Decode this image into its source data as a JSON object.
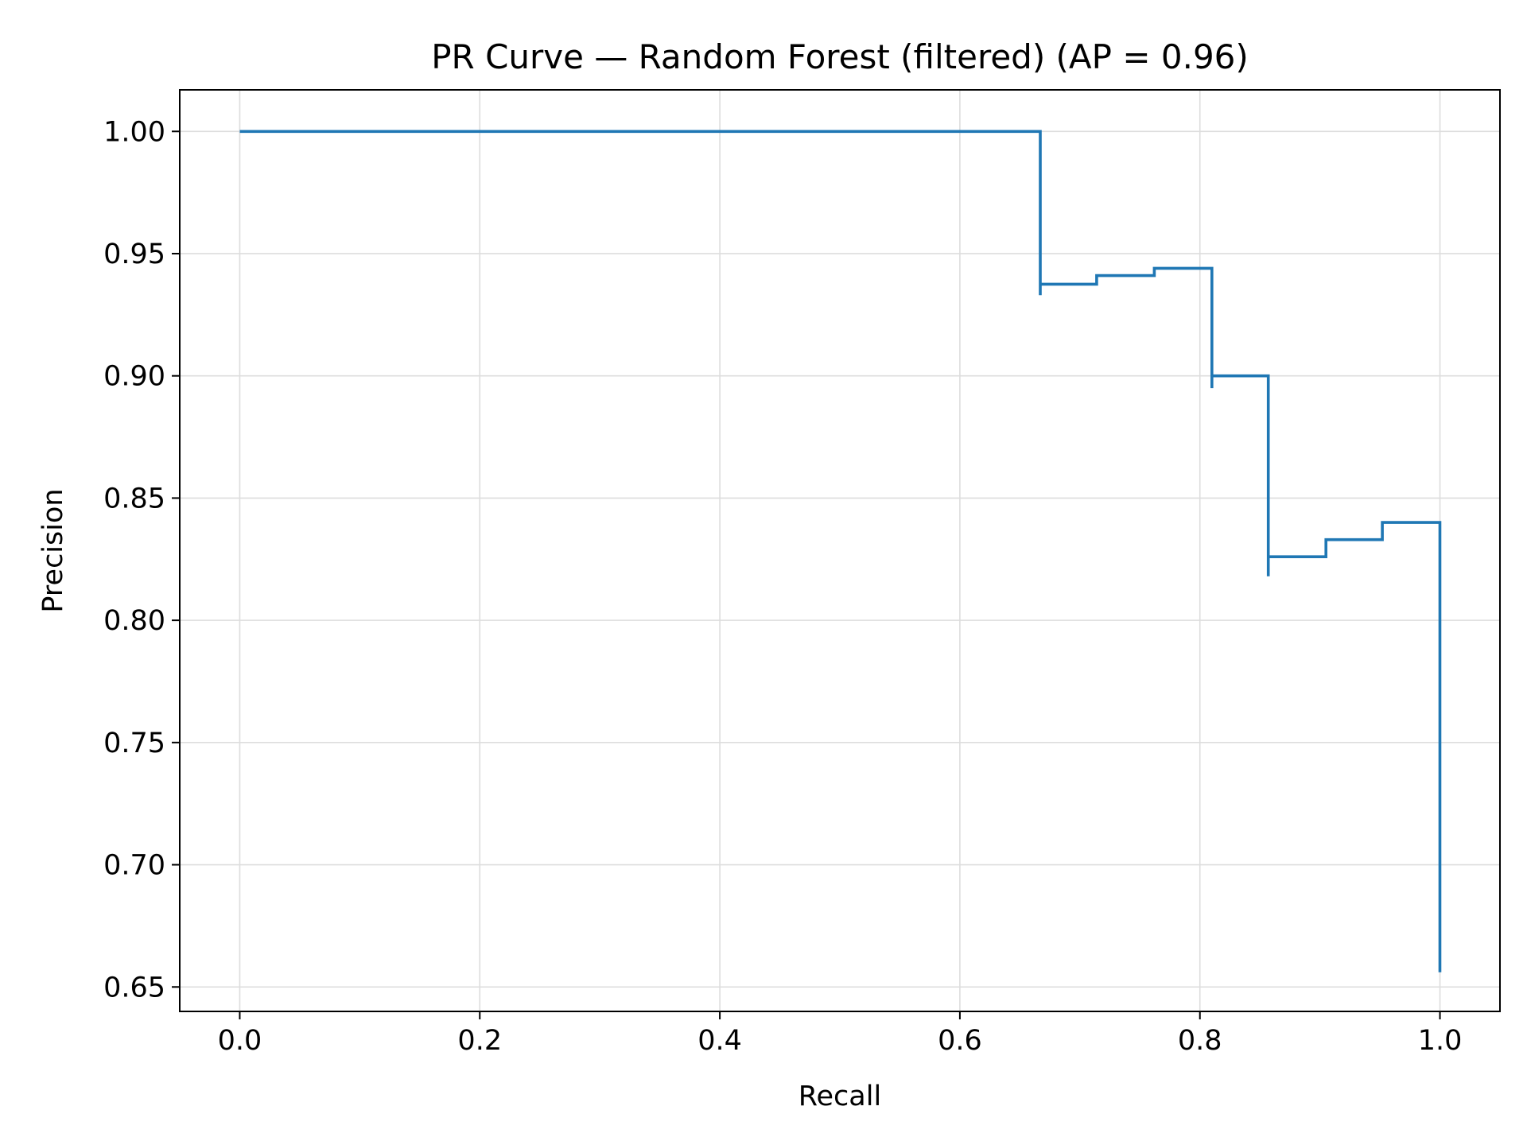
{
  "chart_data": {
    "type": "line",
    "title": "PR Curve — Random Forest (filtered) (AP = 0.96)",
    "xlabel": "Recall",
    "ylabel": "Precision",
    "xlim": [
      -0.05,
      1.05
    ],
    "ylim": [
      0.64,
      1.017
    ],
    "xticks": [
      0.0,
      0.2,
      0.4,
      0.6,
      0.8,
      1.0
    ],
    "xtick_labels": [
      "0.0",
      "0.2",
      "0.4",
      "0.6",
      "0.8",
      "1.0"
    ],
    "yticks": [
      0.65,
      0.7,
      0.75,
      0.8,
      0.85,
      0.9,
      0.95,
      1.0
    ],
    "ytick_labels": [
      "0.65",
      "0.70",
      "0.75",
      "0.80",
      "0.85",
      "0.90",
      "0.95",
      "1.00"
    ],
    "grid": true,
    "step": "post",
    "series": [
      {
        "color": "#1f77b4",
        "x": [
          0.0,
          0.667,
          0.667,
          0.667,
          0.714,
          0.714,
          0.762,
          0.762,
          0.81,
          0.81,
          0.81,
          0.857,
          0.857,
          0.857,
          0.905,
          0.905,
          0.952,
          0.952,
          1.0,
          1.0
        ],
        "y": [
          1.0,
          1.0,
          0.933,
          0.9375,
          0.9375,
          0.941,
          0.941,
          0.944,
          0.944,
          0.895,
          0.9,
          0.9,
          0.818,
          0.826,
          0.826,
          0.833,
          0.833,
          0.84,
          0.84,
          0.656
        ]
      }
    ]
  }
}
